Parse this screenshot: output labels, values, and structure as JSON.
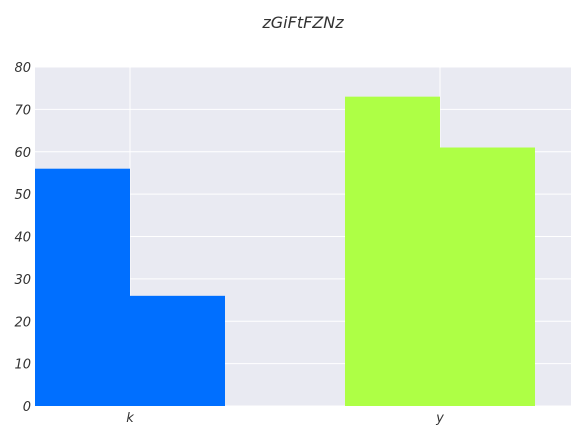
{
  "chart_data": {
    "type": "bar",
    "title": "zGiFtFZNz",
    "xlabel": "",
    "ylabel": "",
    "categories": [
      "k",
      "y"
    ],
    "series": [
      {
        "values": [
          56,
          26
        ],
        "color": "#006fff"
      },
      {
        "values": [
          73,
          61
        ],
        "color": "#aeff45"
      }
    ],
    "grouping": "by-category-pairs",
    "ylim": [
      0,
      80
    ],
    "yticks": [
      0,
      10,
      20,
      30,
      40,
      50,
      60,
      70,
      80
    ],
    "grid": true,
    "background": "#e9eaf2",
    "legend": "none"
  }
}
